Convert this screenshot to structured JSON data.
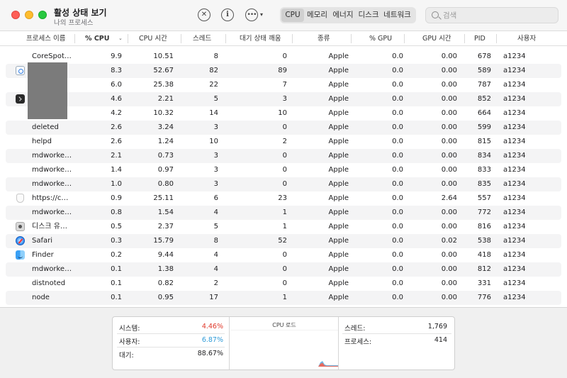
{
  "window": {
    "title": "활성 상태 보기",
    "subtitle": "나의 프로세스"
  },
  "toolbar": {
    "stop_icon": "xmark-circle-icon",
    "info_icon": "info-circle-icon",
    "more_icon": "ellipsis-circle-icon",
    "more_icon_glyph": "•••",
    "info_glyph": "i",
    "stop_glyph": "✕",
    "chevron_glyph": "▾",
    "tabs": [
      {
        "label": "CPU",
        "active": true
      },
      {
        "label": "메모리",
        "active": false
      },
      {
        "label": "에너지",
        "active": false
      },
      {
        "label": "디스크",
        "active": false
      },
      {
        "label": "네트워크",
        "active": false
      }
    ],
    "search_placeholder": "검색"
  },
  "columns": {
    "name": "프로세스 이름",
    "cpu": "% CPU",
    "cpu_time": "CPU 시간",
    "threads": "스레드",
    "idle_wake": "대기 상태 깨움",
    "kind": "종류",
    "gpu": "% GPU",
    "gpu_time": "GPU 시간",
    "pid": "PID",
    "user": "사용자",
    "sort_glyph": "⌄"
  },
  "processes": [
    {
      "name": "CoreSpot…",
      "icon": "",
      "cpu": "9.9",
      "cpu_time": "10.51",
      "threads": "8",
      "idle_wake": "0",
      "kind": "Apple",
      "gpu": "0.0",
      "gpu_time": "0.00",
      "pid": "678",
      "user": "a1234"
    },
    {
      "name": "",
      "icon": "spotlight-icon",
      "cpu": "8.3",
      "cpu_time": "52.67",
      "threads": "82",
      "idle_wake": "89",
      "kind": "Apple",
      "gpu": "0.0",
      "gpu_time": "0.00",
      "pid": "589",
      "user": "a1234"
    },
    {
      "name": "",
      "icon": "",
      "cpu": "6.0",
      "cpu_time": "25.38",
      "threads": "22",
      "idle_wake": "7",
      "kind": "Apple",
      "gpu": "0.0",
      "gpu_time": "0.00",
      "pid": "787",
      "user": "a1234"
    },
    {
      "name": "",
      "icon": "terminal-icon",
      "cpu": "4.6",
      "cpu_time": "2.21",
      "threads": "5",
      "idle_wake": "3",
      "kind": "Apple",
      "gpu": "0.0",
      "gpu_time": "0.00",
      "pid": "852",
      "user": "a1234"
    },
    {
      "name": "",
      "icon": "",
      "cpu": "4.2",
      "cpu_time": "10.32",
      "threads": "14",
      "idle_wake": "10",
      "kind": "Apple",
      "gpu": "0.0",
      "gpu_time": "0.00",
      "pid": "664",
      "user": "a1234"
    },
    {
      "name": "deleted",
      "icon": "",
      "cpu": "2.6",
      "cpu_time": "3.24",
      "threads": "3",
      "idle_wake": "0",
      "kind": "Apple",
      "gpu": "0.0",
      "gpu_time": "0.00",
      "pid": "599",
      "user": "a1234"
    },
    {
      "name": "helpd",
      "icon": "",
      "cpu": "2.6",
      "cpu_time": "1.24",
      "threads": "10",
      "idle_wake": "2",
      "kind": "Apple",
      "gpu": "0.0",
      "gpu_time": "0.00",
      "pid": "815",
      "user": "a1234"
    },
    {
      "name": "mdworke…",
      "icon": "",
      "cpu": "2.1",
      "cpu_time": "0.73",
      "threads": "3",
      "idle_wake": "0",
      "kind": "Apple",
      "gpu": "0.0",
      "gpu_time": "0.00",
      "pid": "834",
      "user": "a1234"
    },
    {
      "name": "mdworke…",
      "icon": "",
      "cpu": "1.4",
      "cpu_time": "0.97",
      "threads": "3",
      "idle_wake": "0",
      "kind": "Apple",
      "gpu": "0.0",
      "gpu_time": "0.00",
      "pid": "833",
      "user": "a1234"
    },
    {
      "name": "mdworke…",
      "icon": "",
      "cpu": "1.0",
      "cpu_time": "0.80",
      "threads": "3",
      "idle_wake": "0",
      "kind": "Apple",
      "gpu": "0.0",
      "gpu_time": "0.00",
      "pid": "835",
      "user": "a1234"
    },
    {
      "name": "https://c…",
      "icon": "shield-icon",
      "cpu": "0.9",
      "cpu_time": "25.11",
      "threads": "6",
      "idle_wake": "23",
      "kind": "Apple",
      "gpu": "0.0",
      "gpu_time": "2.64",
      "pid": "557",
      "user": "a1234"
    },
    {
      "name": "mdworke…",
      "icon": "",
      "cpu": "0.8",
      "cpu_time": "1.54",
      "threads": "4",
      "idle_wake": "1",
      "kind": "Apple",
      "gpu": "0.0",
      "gpu_time": "0.00",
      "pid": "772",
      "user": "a1234"
    },
    {
      "name": "디스크 유…",
      "icon": "disk-utility-icon",
      "cpu": "0.5",
      "cpu_time": "2.37",
      "threads": "5",
      "idle_wake": "1",
      "kind": "Apple",
      "gpu": "0.0",
      "gpu_time": "0.00",
      "pid": "816",
      "user": "a1234"
    },
    {
      "name": "Safari",
      "icon": "safari-icon",
      "cpu": "0.3",
      "cpu_time": "15.79",
      "threads": "8",
      "idle_wake": "52",
      "kind": "Apple",
      "gpu": "0.0",
      "gpu_time": "0.02",
      "pid": "538",
      "user": "a1234"
    },
    {
      "name": "Finder",
      "icon": "finder-icon",
      "cpu": "0.2",
      "cpu_time": "9.44",
      "threads": "4",
      "idle_wake": "0",
      "kind": "Apple",
      "gpu": "0.0",
      "gpu_time": "0.00",
      "pid": "418",
      "user": "a1234"
    },
    {
      "name": "mdworke…",
      "icon": "",
      "cpu": "0.1",
      "cpu_time": "1.38",
      "threads": "4",
      "idle_wake": "0",
      "kind": "Apple",
      "gpu": "0.0",
      "gpu_time": "0.00",
      "pid": "812",
      "user": "a1234"
    },
    {
      "name": "distnoted",
      "icon": "",
      "cpu": "0.1",
      "cpu_time": "0.82",
      "threads": "2",
      "idle_wake": "0",
      "kind": "Apple",
      "gpu": "0.0",
      "gpu_time": "0.00",
      "pid": "331",
      "user": "a1234"
    },
    {
      "name": "node",
      "icon": "",
      "cpu": "0.1",
      "cpu_time": "0.95",
      "threads": "17",
      "idle_wake": "1",
      "kind": "Apple",
      "gpu": "0.0",
      "gpu_time": "0.00",
      "pid": "776",
      "user": "a1234"
    }
  ],
  "summary": {
    "system_label": "시스템:",
    "system_value": "4.46%",
    "user_label": "사용자:",
    "user_value": "6.87%",
    "idle_label": "대기:",
    "idle_value": "88.67%",
    "cpu_load_title": "CPU 로드",
    "threads_label": "스레드:",
    "threads_value": "1,769",
    "processes_label": "프로세스:",
    "processes_value": "414"
  },
  "colors": {
    "system": "#e0392b",
    "user": "#2f9bd8",
    "close": "#fe5f57",
    "minimize": "#febc2e",
    "maximize": "#28c840"
  }
}
